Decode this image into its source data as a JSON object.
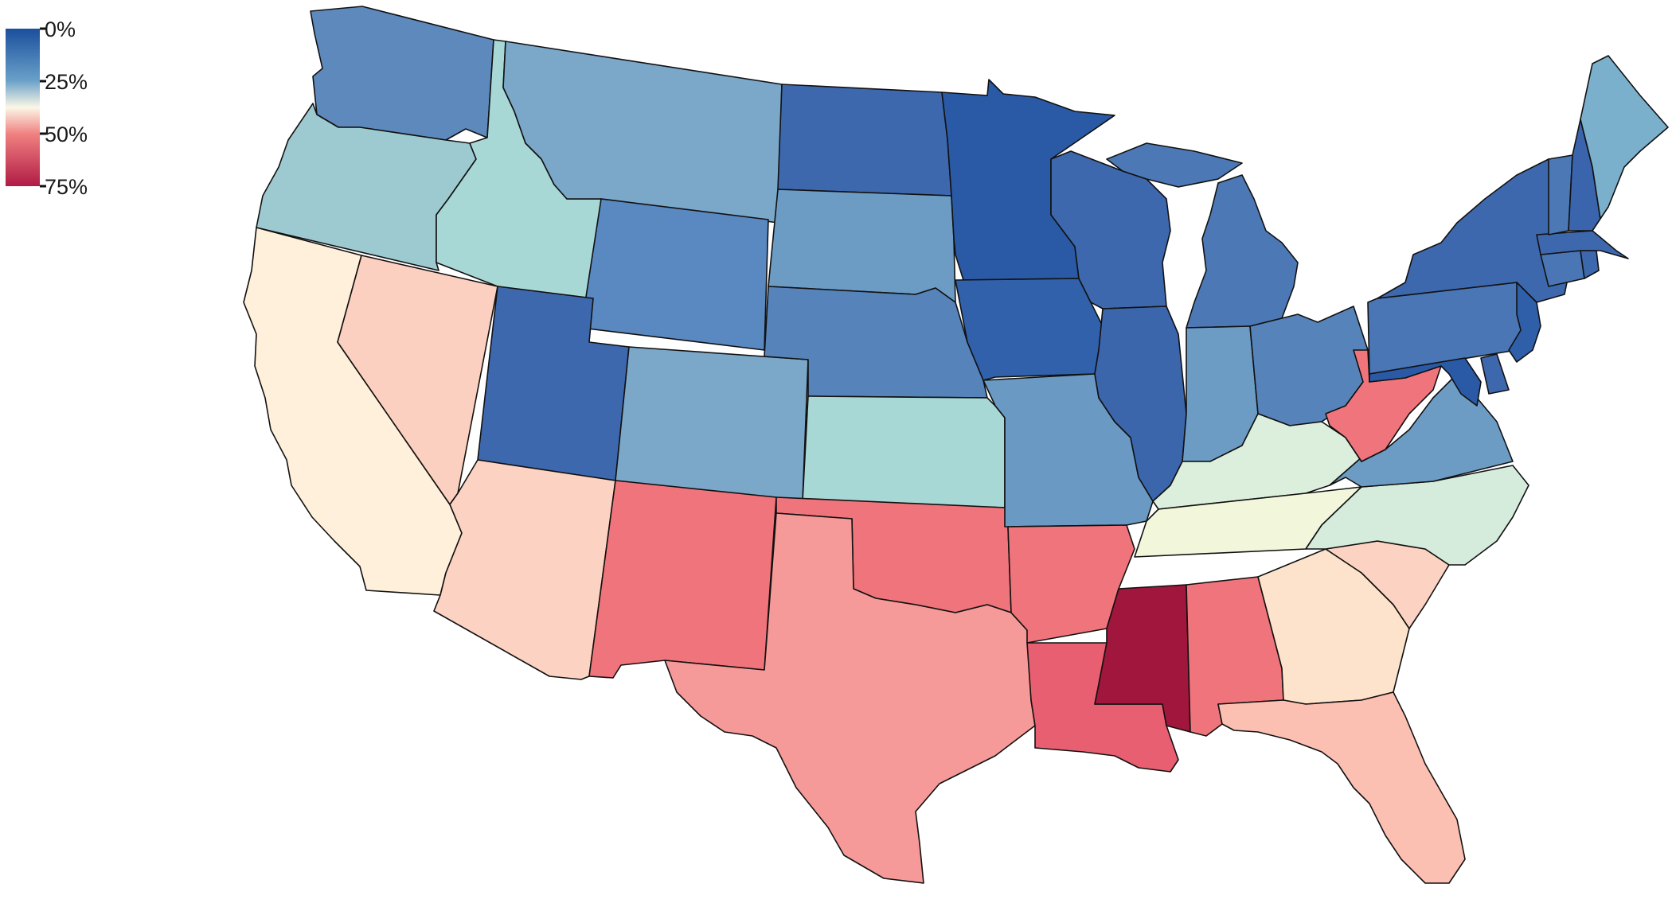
{
  "legend": {
    "ticks": [
      "0%",
      "25%",
      "50%",
      "75%"
    ],
    "stops": [
      "#1a4f9c",
      "#6aa1c9",
      "#fbf7e6",
      "#f08080",
      "#b01b45"
    ]
  },
  "states": [
    {
      "id": "WA",
      "color": "#5d89bd"
    },
    {
      "id": "OR",
      "color": "#9dcad0"
    },
    {
      "id": "CA",
      "color": "#fff0db"
    },
    {
      "id": "ID",
      "color": "#a8d8d6"
    },
    {
      "id": "NV",
      "color": "#fcd0c0"
    },
    {
      "id": "MT",
      "color": "#7ba7c8"
    },
    {
      "id": "WY",
      "color": "#5a88c0"
    },
    {
      "id": "UT",
      "color": "#3e68ad"
    },
    {
      "id": "AZ",
      "color": "#fcd2c2"
    },
    {
      "id": "CO",
      "color": "#7ba7c8"
    },
    {
      "id": "NM",
      "color": "#f0747b"
    },
    {
      "id": "ND",
      "color": "#3e68ad"
    },
    {
      "id": "SD",
      "color": "#6c9cc4"
    },
    {
      "id": "NE",
      "color": "#5683b9"
    },
    {
      "id": "KS",
      "color": "#a8d8d6"
    },
    {
      "id": "OK",
      "color": "#f0747b"
    },
    {
      "id": "TX",
      "color": "#f59a98"
    },
    {
      "id": "MN",
      "color": "#2a5aa5"
    },
    {
      "id": "IA",
      "color": "#3061aa"
    },
    {
      "id": "MO",
      "color": "#6a9ac3"
    },
    {
      "id": "AR",
      "color": "#f0747b"
    },
    {
      "id": "LA",
      "color": "#e85f71"
    },
    {
      "id": "WI",
      "color": "#3e68ad"
    },
    {
      "id": "IL",
      "color": "#3c66ac"
    },
    {
      "id": "MS",
      "color": "#a0163c"
    },
    {
      "id": "MI",
      "color": "#4c79b6"
    },
    {
      "id": "IN",
      "color": "#6c9cc4"
    },
    {
      "id": "AL",
      "color": "#f0747b"
    },
    {
      "id": "OH",
      "color": "#5683b9"
    },
    {
      "id": "KY",
      "color": "#dcefdc"
    },
    {
      "id": "TN",
      "color": "#f2f7dc"
    },
    {
      "id": "GA",
      "color": "#fde3cc"
    },
    {
      "id": "FL",
      "color": "#fcc0b3"
    },
    {
      "id": "SC",
      "color": "#fcd2c2"
    },
    {
      "id": "NC",
      "color": "#d5ebdc"
    },
    {
      "id": "VA",
      "color": "#6c9cc4"
    },
    {
      "id": "WV",
      "color": "#f0747b"
    },
    {
      "id": "PA",
      "color": "#4a76b5"
    },
    {
      "id": "NY",
      "color": "#3e68ad"
    },
    {
      "id": "MD",
      "color": "#2a5aa5"
    },
    {
      "id": "DE",
      "color": "#3e68ad"
    },
    {
      "id": "NJ",
      "color": "#2f5fa8"
    },
    {
      "id": "CT",
      "color": "#4a76b5"
    },
    {
      "id": "RI",
      "color": "#3e68ad"
    },
    {
      "id": "MA",
      "color": "#3e68ad"
    },
    {
      "id": "VT",
      "color": "#4c79b6"
    },
    {
      "id": "NH",
      "color": "#3a64ab"
    },
    {
      "id": "ME",
      "color": "#7bb0cc"
    }
  ]
}
